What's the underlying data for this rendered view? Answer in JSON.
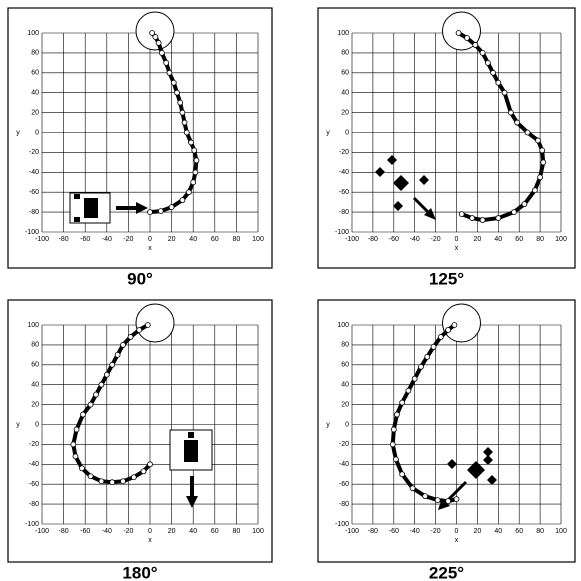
{
  "chart_data": [
    {
      "type": "scatter",
      "title": "90°",
      "x_label": "x",
      "y_label": "y",
      "x": [
        0,
        10,
        20,
        30,
        36,
        40,
        42,
        43,
        41,
        38,
        34,
        32,
        30,
        28,
        25,
        22,
        18,
        15,
        11,
        8,
        5,
        2
      ],
      "values": [
        -80,
        -79,
        -75,
        -68,
        -60,
        -50,
        -40,
        -28,
        -18,
        -10,
        0,
        10,
        20,
        30,
        40,
        50,
        60,
        70,
        80,
        90,
        96,
        100
      ],
      "xlim": [
        -100,
        100
      ],
      "ylim": [
        -100,
        100
      ],
      "xticks": [
        -100,
        -80,
        -60,
        -40,
        -20,
        0,
        20,
        40,
        60,
        80,
        100
      ],
      "yticks": [
        -100,
        -80,
        -60,
        -40,
        -20,
        0,
        20,
        40,
        60,
        80,
        100
      ],
      "grid": true
    },
    {
      "type": "scatter",
      "title": "125°",
      "x_label": "x",
      "y_label": "y",
      "x": [
        5,
        15,
        25,
        40,
        55,
        65,
        75,
        80,
        83,
        82,
        78,
        68,
        58,
        52,
        46,
        40,
        35,
        30,
        25,
        18,
        10,
        2
      ],
      "values": [
        -82,
        -86,
        -88,
        -86,
        -80,
        -72,
        -58,
        -45,
        -30,
        -18,
        -8,
        0,
        10,
        20,
        40,
        50,
        60,
        70,
        80,
        88,
        95,
        100
      ],
      "xlim": [
        -100,
        100
      ],
      "ylim": [
        -100,
        100
      ],
      "xticks": [
        -100,
        -80,
        -60,
        -40,
        -20,
        0,
        20,
        40,
        60,
        80,
        100
      ],
      "yticks": [
        -100,
        -80,
        -60,
        -40,
        -20,
        0,
        20,
        40,
        60,
        80,
        100
      ],
      "grid": true
    },
    {
      "type": "scatter",
      "title": "180°",
      "x_label": "x",
      "y_label": "y",
      "x": [
        0,
        -6,
        -15,
        -25,
        -35,
        -45,
        -55,
        -63,
        -69,
        -71,
        -68,
        -62,
        -55,
        -50,
        -45,
        -40,
        -35,
        -30,
        -25,
        -18,
        -10,
        -2
      ],
      "values": [
        -40,
        -47,
        -53,
        -57,
        -58,
        -57,
        -52,
        -44,
        -32,
        -20,
        -5,
        10,
        20,
        30,
        40,
        50,
        60,
        70,
        80,
        88,
        95,
        100
      ],
      "xlim": [
        -100,
        100
      ],
      "ylim": [
        -100,
        100
      ],
      "xticks": [
        -100,
        -80,
        -60,
        -40,
        -20,
        0,
        20,
        40,
        60,
        80,
        100
      ],
      "yticks": [
        -100,
        -80,
        -60,
        -40,
        -20,
        0,
        20,
        40,
        60,
        80,
        100
      ],
      "grid": true
    },
    {
      "type": "scatter",
      "title": "225°",
      "x_label": "x",
      "y_label": "y",
      "x": [
        0,
        -8,
        -18,
        -30,
        -42,
        -52,
        -58,
        -61,
        -60,
        -57,
        -52,
        -46,
        -40,
        -34,
        -28,
        -22,
        -15,
        -8,
        -2
      ],
      "values": [
        -75,
        -77,
        -76,
        -72,
        -64,
        -50,
        -35,
        -20,
        -5,
        10,
        22,
        34,
        46,
        58,
        68,
        78,
        88,
        95,
        100
      ],
      "xlim": [
        -100,
        100
      ],
      "ylim": [
        -100,
        100
      ],
      "xticks": [
        -100,
        -80,
        -60,
        -40,
        -20,
        0,
        20,
        40,
        60,
        80,
        100
      ],
      "yticks": [
        -100,
        -80,
        -60,
        -40,
        -20,
        0,
        20,
        40,
        60,
        80,
        100
      ],
      "grid": true
    }
  ]
}
